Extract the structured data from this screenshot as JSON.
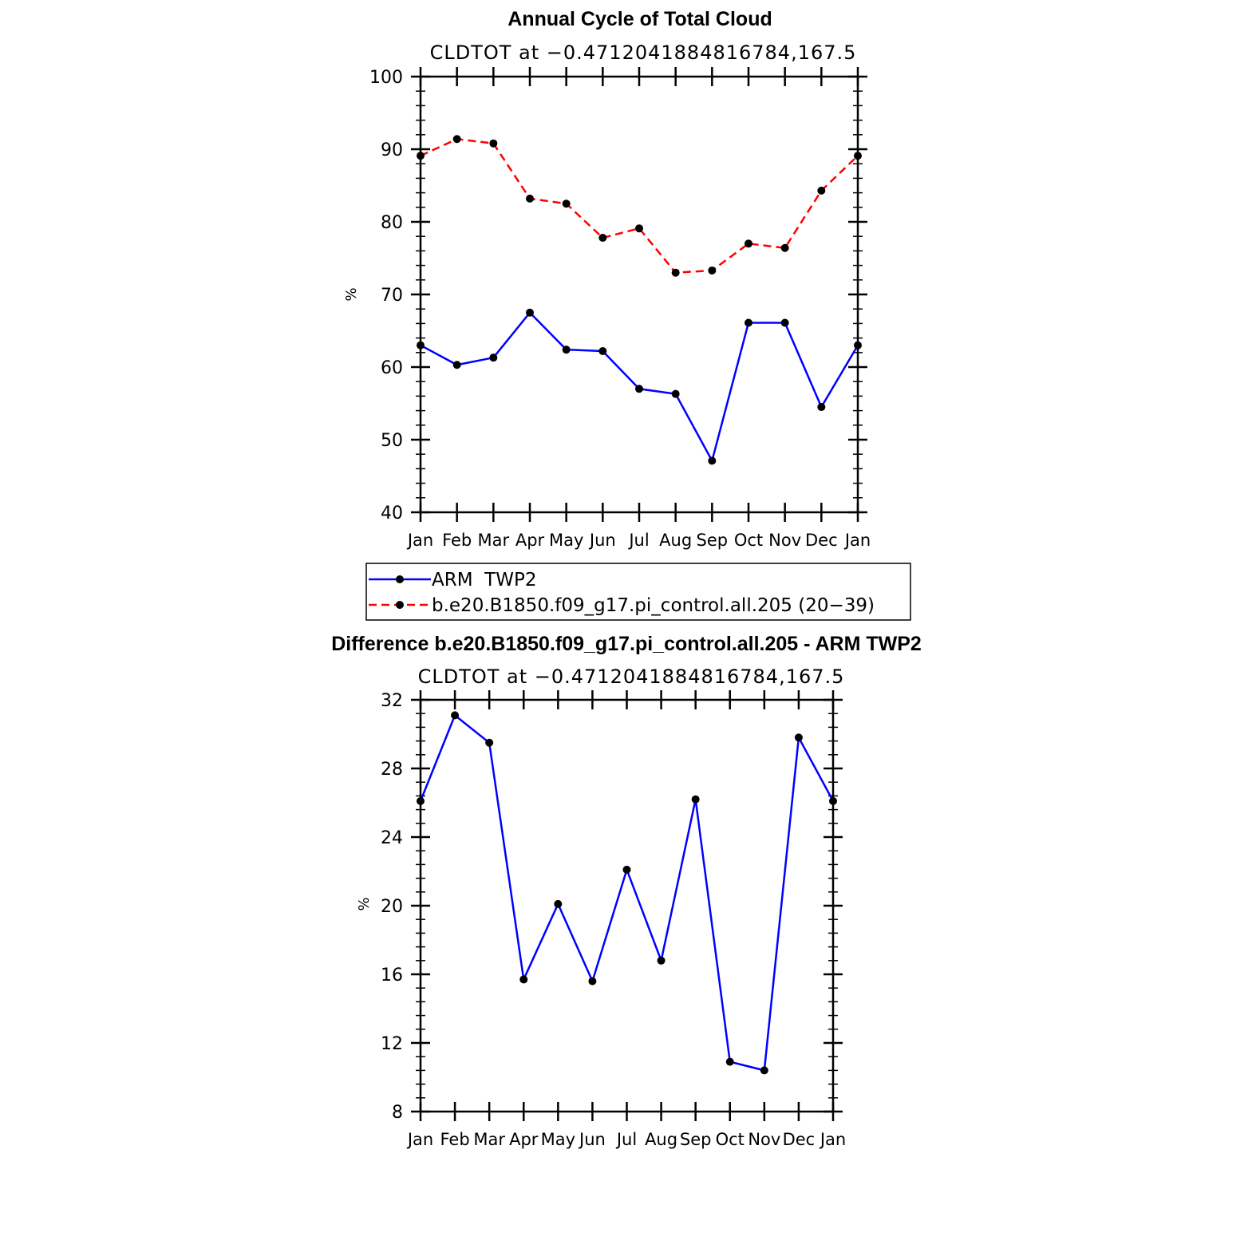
{
  "chart_data": [
    {
      "type": "line",
      "title": "Annual Cycle of Total Cloud",
      "subtitle": "CLDTOT at −0.4712041884816784,167.5",
      "ylabel": "%",
      "ylim": [
        40,
        100
      ],
      "yticks": [
        "40",
        "50",
        "60",
        "70",
        "80",
        "90",
        "100"
      ],
      "categories": [
        "Jan",
        "Feb",
        "Mar",
        "Apr",
        "May",
        "Jun",
        "Jul",
        "Aug",
        "Sep",
        "Oct",
        "Nov",
        "Dec",
        "Jan"
      ],
      "series": [
        {
          "name": "ARM  TWP2",
          "color": "#0000ff",
          "style": "solid",
          "values": [
            63.0,
            60.3,
            61.3,
            67.5,
            62.4,
            62.2,
            57.0,
            56.3,
            47.1,
            66.1,
            66.1,
            54.5,
            63.0
          ]
        },
        {
          "name": "b.e20.B1850.f09_g17.pi_control.all.205 (20−39)",
          "color": "#ff0000",
          "style": "dashed",
          "values": [
            89.1,
            91.4,
            90.8,
            83.2,
            82.5,
            77.8,
            79.1,
            73.0,
            73.3,
            77.0,
            76.4,
            84.3,
            89.1
          ]
        }
      ]
    },
    {
      "type": "line",
      "title": "Difference b.e20.B1850.f09_g17.pi_control.all.205 - ARM TWP2",
      "subtitle": "CLDTOT at −0.4712041884816784,167.5",
      "ylabel": "%",
      "ylim": [
        8,
        32
      ],
      "yticks": [
        "8",
        "12",
        "16",
        "20",
        "24",
        "28",
        "32"
      ],
      "categories": [
        "Jan",
        "Feb",
        "Mar",
        "Apr",
        "May",
        "Jun",
        "Jul",
        "Aug",
        "Sep",
        "Oct",
        "Nov",
        "Dec",
        "Jan"
      ],
      "series": [
        {
          "name": "Difference",
          "color": "#0000ff",
          "style": "solid",
          "values": [
            26.1,
            31.1,
            29.5,
            15.7,
            20.1,
            15.6,
            22.1,
            16.8,
            26.2,
            10.9,
            10.4,
            29.8,
            26.1
          ]
        }
      ]
    }
  ]
}
